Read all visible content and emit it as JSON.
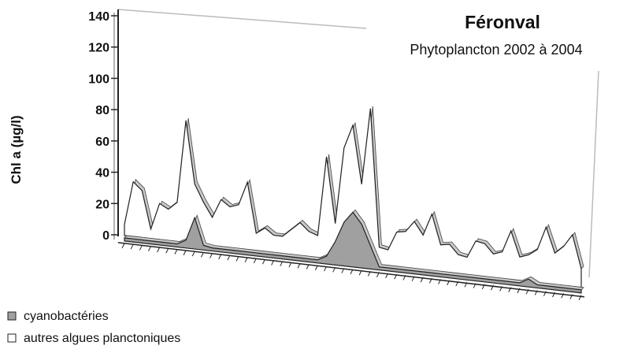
{
  "chart_data": {
    "type": "area3d",
    "title": "Féronval",
    "subtitle": "Phytoplancton 2002 à 2004",
    "y_label": "Chl a (µg/l)",
    "ylim": [
      0,
      140
    ],
    "yticks": [
      0,
      20,
      40,
      60,
      80,
      100,
      120,
      140
    ],
    "series": [
      {
        "name": "cyanobactéries",
        "color": "#a0a0a0",
        "values": [
          2,
          2,
          2,
          2,
          2,
          2,
          2,
          5,
          20,
          3,
          2,
          2,
          2,
          2,
          2,
          2,
          2,
          2,
          2,
          2,
          2,
          2,
          2,
          5,
          15,
          28,
          35,
          28,
          15,
          2,
          2,
          2,
          2,
          2,
          2,
          2,
          2,
          2,
          2,
          2,
          2,
          2,
          2,
          2,
          2,
          2,
          5,
          2,
          2,
          2,
          2,
          2,
          2
        ]
      },
      {
        "name": "autres algues planctoniques",
        "color": "#ffffff",
        "values": [
          7,
          35,
          30,
          6,
          23,
          20,
          25,
          78,
          38,
          27,
          18,
          30,
          26,
          28,
          43,
          11,
          15,
          11,
          11,
          16,
          21,
          16,
          14,
          65,
          23,
          72,
          87,
          50,
          99,
          11,
          10,
          22,
          23,
          30,
          22,
          36,
          17,
          18,
          12,
          11,
          22,
          21,
          15,
          17,
          31,
          15,
          17,
          21,
          36,
          20,
          25,
          33,
          12
        ]
      }
    ]
  }
}
